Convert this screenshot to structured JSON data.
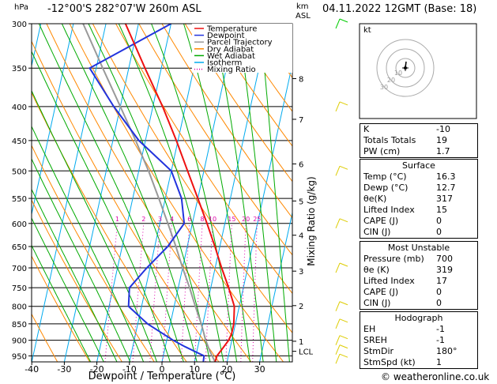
{
  "header": {
    "hpa_unit": "hPa",
    "location": "-12°00'S  282°07'W  260m  ASL",
    "km_unit": "km",
    "asl_unit": "ASL",
    "datetime": "04.11.2022  12GMT  (Base: 18)"
  },
  "chart_data": {
    "type": "line",
    "title": "Skew-T log-P diagram",
    "xlabel": "Dewpoint / Temperature (°C)",
    "ylabel": "hPa",
    "right_axis_label": "Mixing Ratio (g/kg)",
    "xlim": [
      -40,
      40
    ],
    "ylim": [
      300,
      970
    ],
    "pressure_ticks": [
      300,
      350,
      400,
      450,
      500,
      550,
      600,
      650,
      700,
      750,
      800,
      850,
      900,
      950
    ],
    "temp_ticks": [
      -40,
      -30,
      -20,
      -10,
      0,
      10,
      20,
      30
    ],
    "km_ticks": [
      {
        "label": "8",
        "p": 363
      },
      {
        "label": "7",
        "p": 418
      },
      {
        "label": "6",
        "p": 488
      },
      {
        "label": "5",
        "p": 555
      },
      {
        "label": "4",
        "p": 625
      },
      {
        "label": "3",
        "p": 708
      },
      {
        "label": "2",
        "p": 798
      },
      {
        "label": "1",
        "p": 903
      },
      {
        "label": "LCL",
        "p": 935
      }
    ],
    "mixing_ratio_labels": [
      "1",
      "2",
      "3",
      "4",
      "6",
      "8",
      "10",
      "15",
      "20",
      "25"
    ],
    "mixing_ratio_values": [
      1,
      2,
      3,
      4,
      6,
      8,
      10,
      15,
      20,
      25
    ],
    "legend": [
      "Temperature",
      "Dewpoint",
      "Parcel Trajectory",
      "Dry Adiabat",
      "Wet Adiabat",
      "Isotherm",
      "Mixing Ratio"
    ],
    "colors": {
      "temperature": "#ee1111",
      "dewpoint": "#2233dd",
      "parcel": "#999999",
      "dry_adiabat": "#ff8800",
      "wet_adiabat": "#00aa00",
      "isotherm": "#00aaee",
      "mixing_ratio": "#dd00aa"
    },
    "series": [
      {
        "name": "Temperature",
        "points": [
          [
            970,
            16.3
          ],
          [
            950,
            16.5
          ],
          [
            930,
            17.5
          ],
          [
            900,
            19
          ],
          [
            880,
            19.5
          ],
          [
            850,
            19.5
          ],
          [
            800,
            18.5
          ],
          [
            750,
            15.5
          ],
          [
            700,
            12
          ],
          [
            650,
            8.5
          ],
          [
            600,
            4.5
          ],
          [
            550,
            0
          ],
          [
            500,
            -5
          ],
          [
            450,
            -10.5
          ],
          [
            400,
            -17
          ],
          [
            350,
            -25
          ],
          [
            300,
            -34
          ]
        ]
      },
      {
        "name": "Dewpoint",
        "points": [
          [
            970,
            12.7
          ],
          [
            950,
            12.5
          ],
          [
            920,
            6
          ],
          [
            900,
            2
          ],
          [
            850,
            -7
          ],
          [
            800,
            -14
          ],
          [
            750,
            -15
          ],
          [
            700,
            -11
          ],
          [
            650,
            -6
          ],
          [
            600,
            -2.5
          ],
          [
            550,
            -5
          ],
          [
            500,
            -10
          ],
          [
            450,
            -22
          ],
          [
            400,
            -32
          ],
          [
            350,
            -42
          ],
          [
            300,
            -20
          ]
        ]
      },
      {
        "name": "Parcel Trajectory",
        "points": [
          [
            970,
            16.3
          ],
          [
            935,
            14
          ],
          [
            900,
            12
          ],
          [
            850,
            9.5
          ],
          [
            800,
            6.5
          ],
          [
            750,
            3.5
          ],
          [
            700,
            0
          ],
          [
            650,
            -3.5
          ],
          [
            600,
            -7.5
          ],
          [
            550,
            -12
          ],
          [
            500,
            -17
          ],
          [
            450,
            -23
          ],
          [
            400,
            -30
          ],
          [
            350,
            -38
          ],
          [
            300,
            -47
          ]
        ]
      }
    ]
  },
  "hodograph": {
    "unit_label": "kt",
    "ring_labels": [
      "10",
      "20",
      "30"
    ]
  },
  "indices": [
    {
      "label": "K",
      "value": "-10"
    },
    {
      "label": "Totals Totals",
      "value": "19"
    },
    {
      "label": "PW (cm)",
      "value": "1.7"
    }
  ],
  "surface": {
    "title": "Surface",
    "rows": [
      {
        "label": "Temp (°C)",
        "value": "16.3"
      },
      {
        "label": "Dewp (°C)",
        "value": "12.7"
      },
      {
        "label": "θe(K)",
        "value": "317"
      },
      {
        "label": "Lifted Index",
        "value": "15"
      },
      {
        "label": "CAPE (J)",
        "value": "0"
      },
      {
        "label": "CIN (J)",
        "value": "0"
      }
    ]
  },
  "most_unstable": {
    "title": "Most Unstable",
    "rows": [
      {
        "label": "Pressure (mb)",
        "value": "700"
      },
      {
        "label": "θe (K)",
        "value": "319"
      },
      {
        "label": "Lifted Index",
        "value": "17"
      },
      {
        "label": "CAPE (J)",
        "value": "0"
      },
      {
        "label": "CIN (J)",
        "value": "0"
      }
    ]
  },
  "hodograph_table": {
    "title": "Hodograph",
    "rows": [
      {
        "label": "EH",
        "value": "-1"
      },
      {
        "label": "SREH",
        "value": "-1"
      },
      {
        "label": "StmDir",
        "value": "180°"
      },
      {
        "label": "StmSpd (kt)",
        "value": "1"
      }
    ]
  },
  "footer": {
    "copyright": "© weatheronline.co.uk"
  }
}
